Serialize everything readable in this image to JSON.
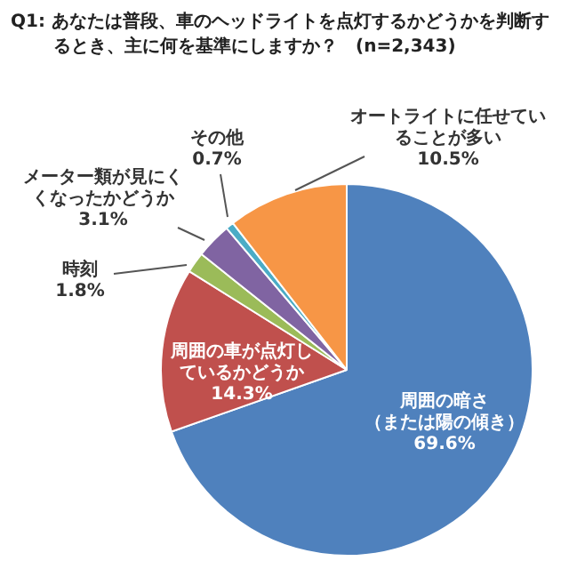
{
  "chart_data": {
    "type": "pie",
    "title": "Q1:  あなたは普段、車のヘッドライトを点灯するかどうかを判断するとき、主に何を基準にしますか？　(n=2,343)",
    "categories": [
      "周囲の暗さ（または陽の傾き）",
      "周囲の車が点灯しているかどうか",
      "時刻",
      "メーター類が見にくくなったかどうか",
      "その他",
      "オートライトに任せていることが多い"
    ],
    "values": [
      69.6,
      14.3,
      1.8,
      3.1,
      0.7,
      10.5
    ],
    "value_labels": [
      "69.6%",
      "14.3%",
      "1.8%",
      "3.1%",
      "0.7%",
      "10.5%"
    ],
    "colors": [
      "#4f81bd",
      "#c0504d",
      "#9bbb59",
      "#8064a2",
      "#4bacc6",
      "#f79646"
    ],
    "legend": false
  }
}
